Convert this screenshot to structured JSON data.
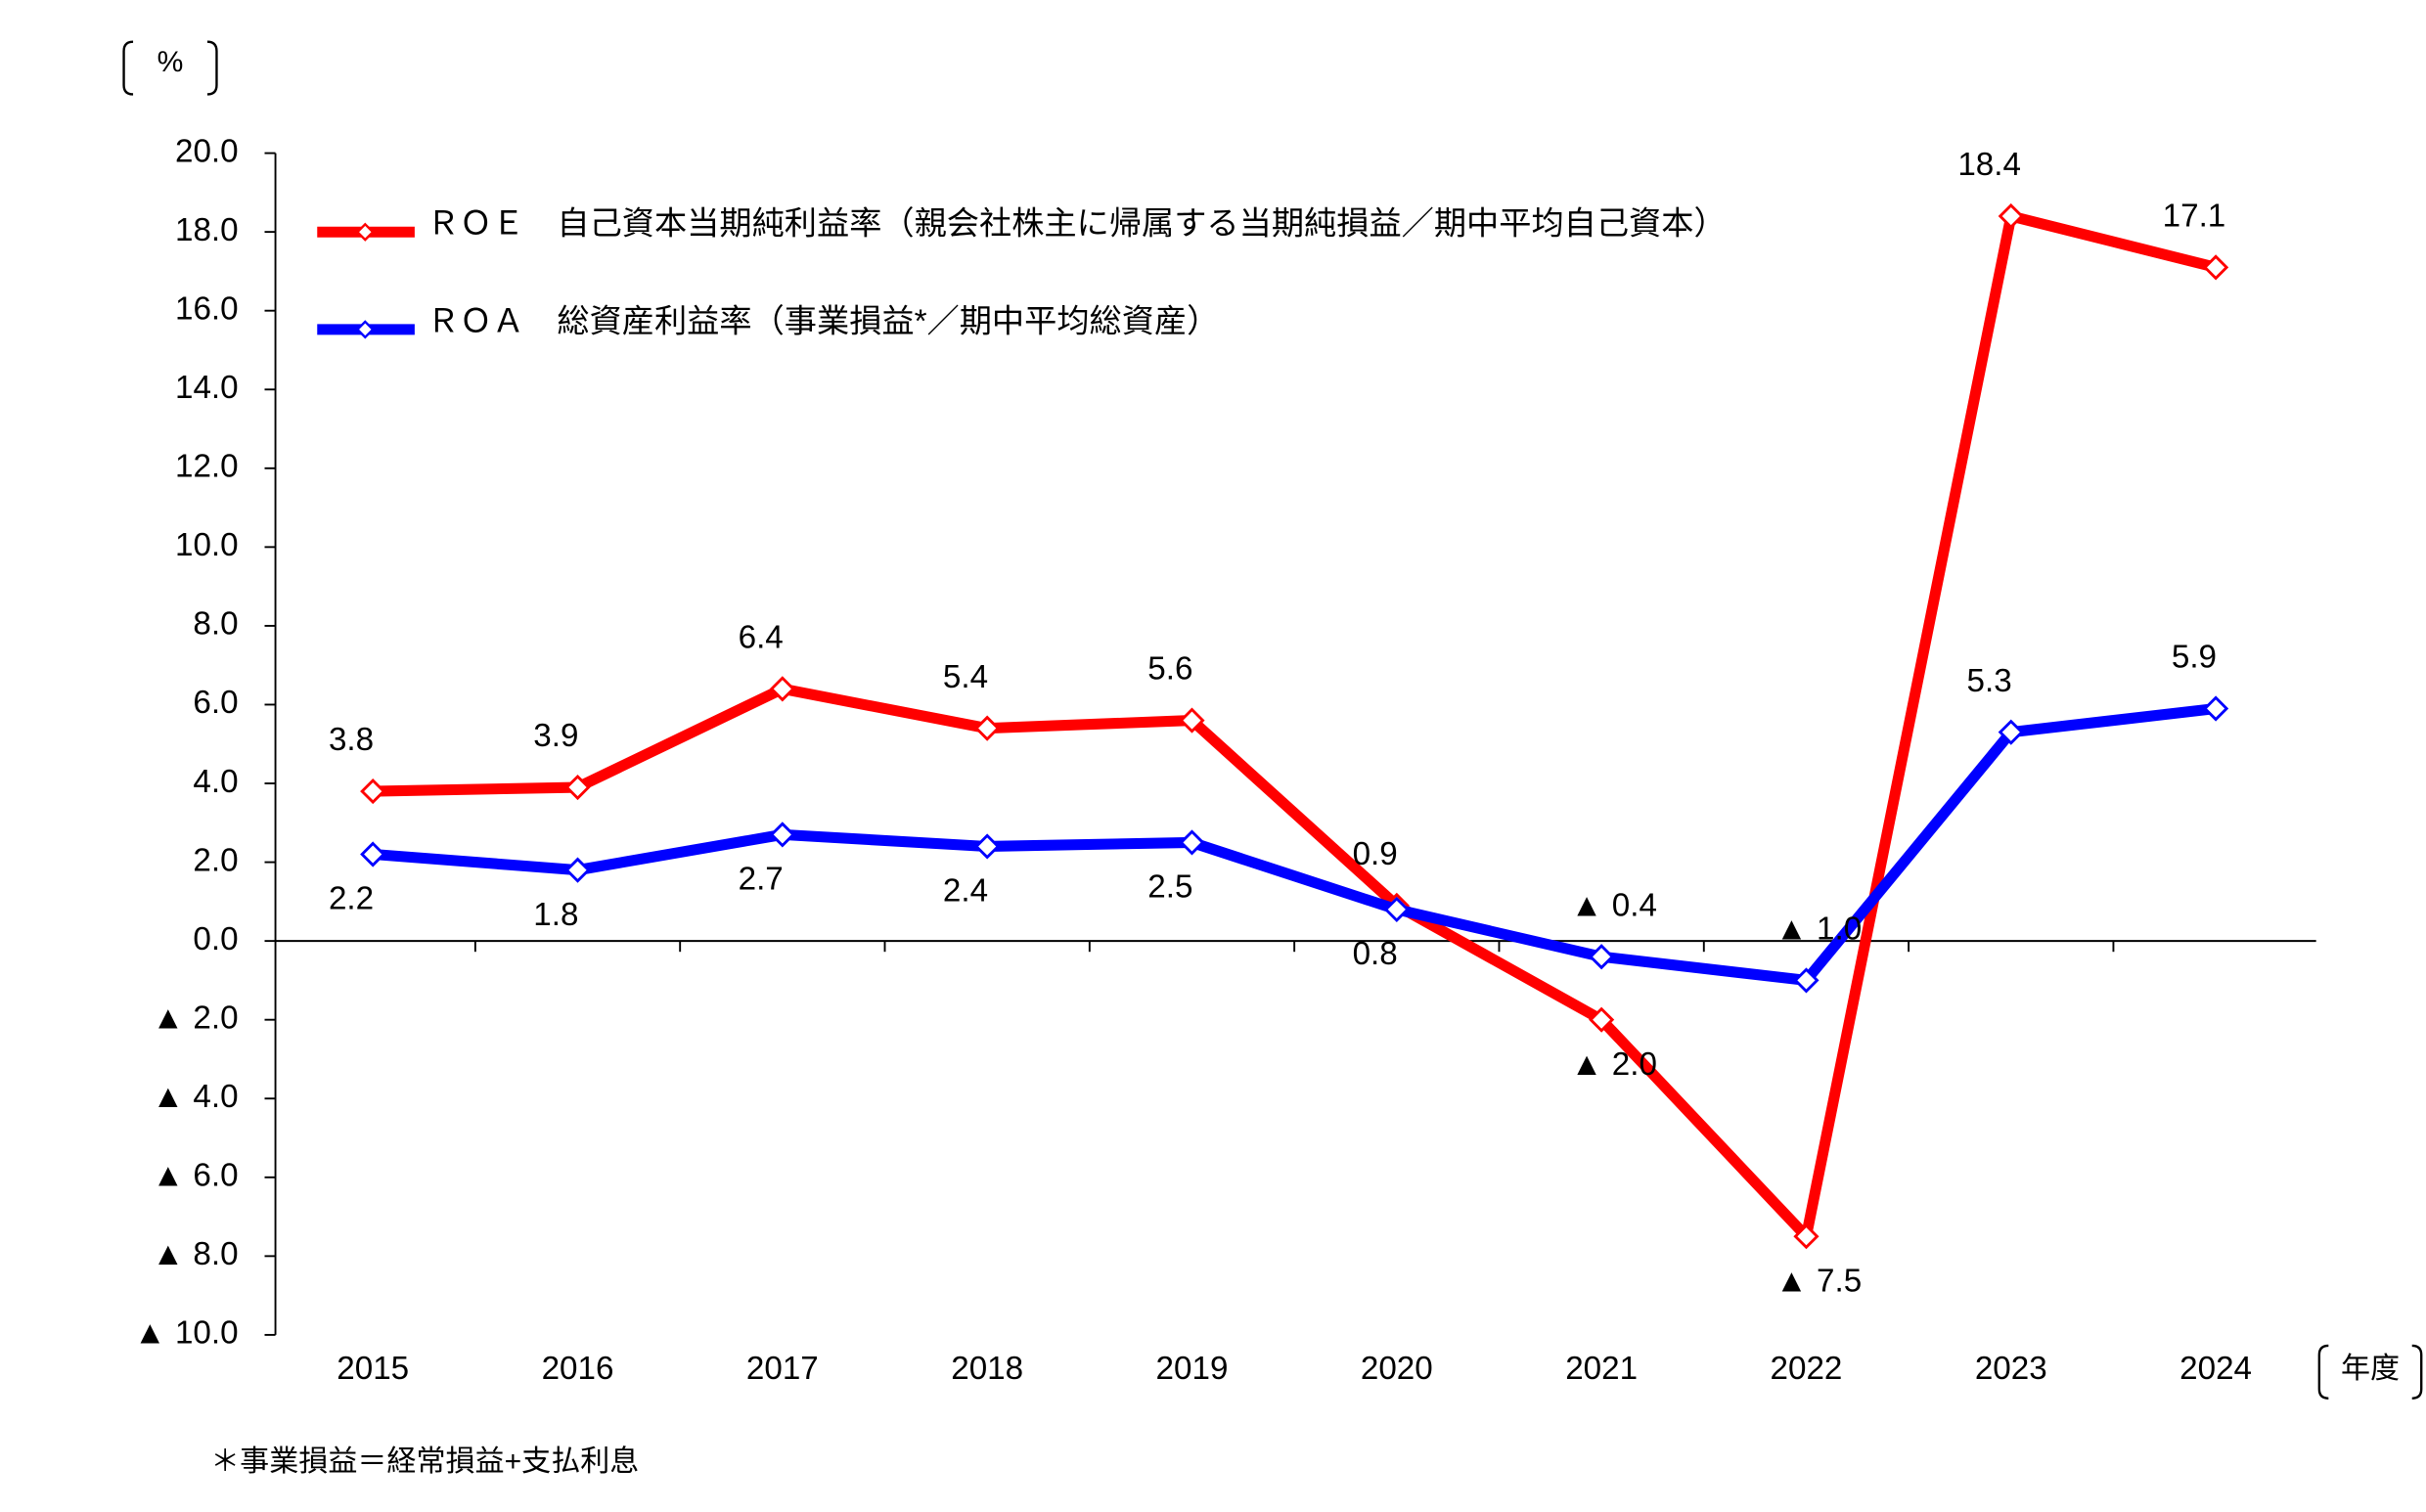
{
  "chart_data": {
    "type": "line",
    "y_unit": "%",
    "x_unit": "年度",
    "footnote": "＊事業損益＝経常損益+支払利息",
    "categories": [
      "2015",
      "2016",
      "2017",
      "2018",
      "2019",
      "2020",
      "2021",
      "2022",
      "2023",
      "2024"
    ],
    "series": [
      {
        "name": "ＲＯＥ　自己資本当期純利益率（親会社株主に帰属する当期純損益／期中平均自己資本）",
        "color": "#ff0000",
        "values": [
          3.8,
          3.9,
          6.4,
          5.4,
          5.6,
          0.9,
          -2.0,
          -7.5,
          18.4,
          17.1
        ],
        "value_labels": [
          "3.8",
          "3.9",
          "6.4",
          "5.4",
          "5.6",
          "0.9",
          "▲ 2.0",
          "▲ 7.5",
          "18.4",
          "17.1"
        ]
      },
      {
        "name": "ＲＯＡ　総資産利益率（事業損益*／期中平均総資産）",
        "color": "#0000ff",
        "values": [
          2.2,
          1.8,
          2.7,
          2.4,
          2.5,
          0.8,
          -0.4,
          -1.0,
          5.3,
          5.9
        ],
        "value_labels": [
          "2.2",
          "1.8",
          "2.7",
          "2.4",
          "2.5",
          "0.8",
          "▲ 0.4",
          "▲ 1.0",
          "5.3",
          "5.9"
        ]
      }
    ],
    "ylim": [
      -10,
      20
    ],
    "yticks": [
      {
        "value": -10,
        "label": "▲ 10.0"
      },
      {
        "value": -8,
        "label": "▲ 8.0"
      },
      {
        "value": -6,
        "label": "▲ 6.0"
      },
      {
        "value": -4,
        "label": "▲ 4.0"
      },
      {
        "value": -2,
        "label": "▲ 2.0"
      },
      {
        "value": 0,
        "label": "0.0"
      },
      {
        "value": 2,
        "label": "2.0"
      },
      {
        "value": 4,
        "label": "4.0"
      },
      {
        "value": 6,
        "label": "6.0"
      },
      {
        "value": 8,
        "label": "8.0"
      },
      {
        "value": 10,
        "label": "10.0"
      },
      {
        "value": 12,
        "label": "12.0"
      },
      {
        "value": 14,
        "label": "14.0"
      },
      {
        "value": 16,
        "label": "16.0"
      },
      {
        "value": 18,
        "label": "18.0"
      },
      {
        "value": 20,
        "label": "20.0"
      }
    ],
    "grid": false
  }
}
